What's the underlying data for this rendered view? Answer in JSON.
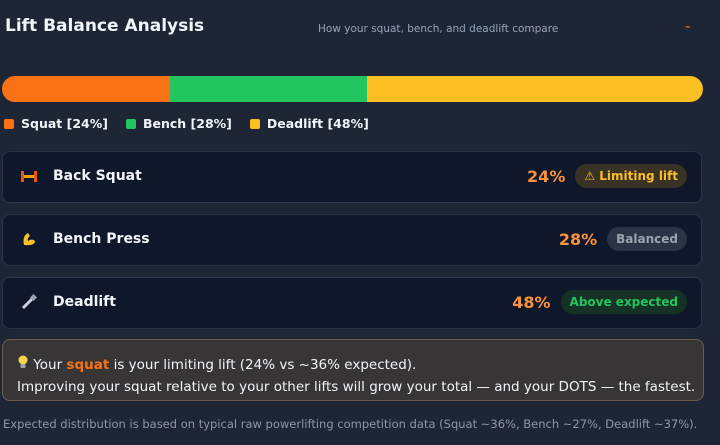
{
  "header": {
    "title": "Lift Balance Analysis",
    "subtitle": "How your squat, bench, and deadlift compare",
    "action": "-"
  },
  "distribution": {
    "segments": [
      {
        "name": "Squat",
        "value": 24,
        "label": "Squat [24%]",
        "color": "#f97316"
      },
      {
        "name": "Bench",
        "value": 28,
        "label": "Bench [28%]",
        "color": "#22c55e"
      },
      {
        "name": "Deadlift",
        "value": 48,
        "label": "Deadlift [48%]",
        "color": "#fbbf24"
      }
    ]
  },
  "lifts": [
    {
      "name": "Back Squat",
      "percent": "24%",
      "badge": "⚠ Limiting lift",
      "status": "limiting"
    },
    {
      "name": "Bench Press",
      "percent": "28%",
      "badge": "Balanced",
      "status": "balanced"
    },
    {
      "name": "Deadlift",
      "percent": "48%",
      "badge": "Above expected",
      "status": "above"
    }
  ],
  "insight": {
    "line1": [
      "Your ",
      "squat",
      " is your limiting lift (24% vs ~36% expected)."
    ],
    "line2": "Improving your squat relative to your other lifts will grow your total — and your DOTS — the fastest."
  },
  "footnote": "Expected distribution is based on typical raw powerlifting competition data (Squat ~36%, Bench ~27%, Deadlift ~37%)."
}
